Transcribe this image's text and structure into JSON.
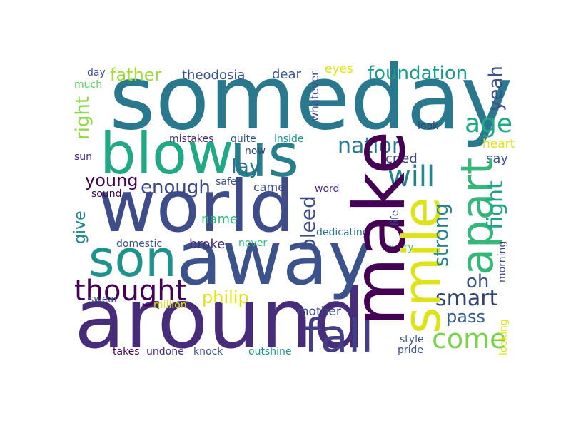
{
  "word_cloud": {
    "words": [
      {
        "id": "someday",
        "text": "someday",
        "color": "#2a788e"
      },
      {
        "id": "around",
        "text": "around",
        "color": "#472c7a"
      },
      {
        "id": "away",
        "text": "away",
        "color": "#3b528b"
      },
      {
        "id": "world",
        "text": "world",
        "color": "#3e4c8a"
      },
      {
        "id": "make",
        "text": "make",
        "color": "#440154"
      },
      {
        "id": "us",
        "text": "us",
        "color": "#277f8e"
      },
      {
        "id": "blow",
        "text": "blow",
        "color": "#22a884"
      },
      {
        "id": "son",
        "text": "son",
        "color": "#21918c"
      },
      {
        "id": "smile",
        "text": "smile",
        "color": "#dde318"
      },
      {
        "id": "apart",
        "text": "apart",
        "color": "#35b779"
      },
      {
        "id": "fall",
        "text": "fall",
        "color": "#433e85"
      },
      {
        "id": "thought",
        "text": "thought",
        "color": "#440154"
      },
      {
        "id": "come",
        "text": "come",
        "color": "#7ad151"
      },
      {
        "id": "smart",
        "text": "smart",
        "color": "#31446b"
      },
      {
        "id": "nation",
        "text": "nation",
        "color": "#2a788e"
      },
      {
        "id": "age",
        "text": "age",
        "color": "#23a983"
      },
      {
        "id": "foundation",
        "text": "foundation",
        "color": "#1f9a8a"
      },
      {
        "id": "father",
        "text": "father",
        "color": "#a0da39"
      },
      {
        "id": "will",
        "text": "will",
        "color": "#25838e"
      },
      {
        "id": "lay",
        "text": "lay",
        "color": "#2c728e"
      },
      {
        "id": "young",
        "text": "young",
        "color": "#440154"
      },
      {
        "id": "enough",
        "text": "enough",
        "color": "#3e4989"
      },
      {
        "id": "fight",
        "text": "fight",
        "color": "#20a386"
      },
      {
        "id": "strong",
        "text": "strong",
        "color": "#26828e"
      },
      {
        "id": "bleed",
        "text": "bleed",
        "color": "#3e4c8a"
      },
      {
        "id": "yeah",
        "text": "yeah",
        "color": "#3b528b"
      },
      {
        "id": "right",
        "text": "right",
        "color": "#8fd744"
      },
      {
        "id": "give",
        "text": "give",
        "color": "#25848e"
      },
      {
        "id": "oh",
        "text": "oh",
        "color": "#3b528b"
      },
      {
        "id": "philip",
        "text": "philip",
        "color": "#dde318"
      },
      {
        "id": "pass",
        "text": "pass",
        "color": "#365c8d"
      },
      {
        "id": "theodosia",
        "text": "theodosia",
        "color": "#3b528b"
      },
      {
        "id": "dear",
        "text": "dear",
        "color": "#3b528b"
      },
      {
        "id": "eyes",
        "text": "eyes",
        "color": "#dde318"
      },
      {
        "id": "name",
        "text": "name",
        "color": "#35b779"
      },
      {
        "id": "broke",
        "text": "broke",
        "color": "#482878"
      },
      {
        "id": "mother",
        "text": "mother",
        "color": "#3e4989"
      },
      {
        "id": "cried",
        "text": "cried",
        "color": "#3e4989"
      },
      {
        "id": "heart",
        "text": "heart",
        "color": "#dde318"
      },
      {
        "id": "say",
        "text": "say",
        "color": "#3b528b"
      },
      {
        "id": "day",
        "text": "day",
        "color": "#3e4c8a"
      },
      {
        "id": "much",
        "text": "much",
        "color": "#5ec962"
      },
      {
        "id": "whatever",
        "text": "whatever",
        "color": "#3e4c8a"
      },
      {
        "id": "look",
        "text": "look",
        "color": "#31446b"
      },
      {
        "id": "mistakes",
        "text": "mistakes",
        "color": "#482878"
      },
      {
        "id": "quite",
        "text": "quite",
        "color": "#3b528b"
      },
      {
        "id": "inside",
        "text": "inside",
        "color": "#21918c"
      },
      {
        "id": "now",
        "text": "now",
        "color": "#31446b"
      },
      {
        "id": "sun",
        "text": "sun",
        "color": "#482878"
      },
      {
        "id": "safe",
        "text": "safe",
        "color": "#3b528b"
      },
      {
        "id": "came",
        "text": "came",
        "color": "#3e4989"
      },
      {
        "id": "word",
        "text": "word",
        "color": "#482878"
      },
      {
        "id": "sound",
        "text": "sound",
        "color": "#440154"
      },
      {
        "id": "life",
        "text": "life",
        "color": "#3e4989"
      },
      {
        "id": "dedicating",
        "text": "dedicating",
        "color": "#2c728e"
      },
      {
        "id": "domestic",
        "text": "domestic",
        "color": "#3b528b"
      },
      {
        "id": "never",
        "text": "never",
        "color": "#35b779"
      },
      {
        "id": "every",
        "text": "every",
        "color": "#44bf70"
      },
      {
        "id": "morning",
        "text": "morning",
        "color": "#3e4989"
      },
      {
        "id": "swear",
        "text": "swear",
        "color": "#3b528b"
      },
      {
        "id": "million",
        "text": "million",
        "color": "#dde318"
      },
      {
        "id": "style",
        "text": "style",
        "color": "#3b528b"
      },
      {
        "id": "looking",
        "text": "looking",
        "color": "#dde318"
      },
      {
        "id": "takes",
        "text": "takes",
        "color": "#440154"
      },
      {
        "id": "undone",
        "text": "undone",
        "color": "#472c7a"
      },
      {
        "id": "knock",
        "text": "knock",
        "color": "#3b528b"
      },
      {
        "id": "outshine",
        "text": "outshine",
        "color": "#21918c"
      },
      {
        "id": "pride",
        "text": "pride",
        "color": "#3b528b"
      }
    ]
  }
}
